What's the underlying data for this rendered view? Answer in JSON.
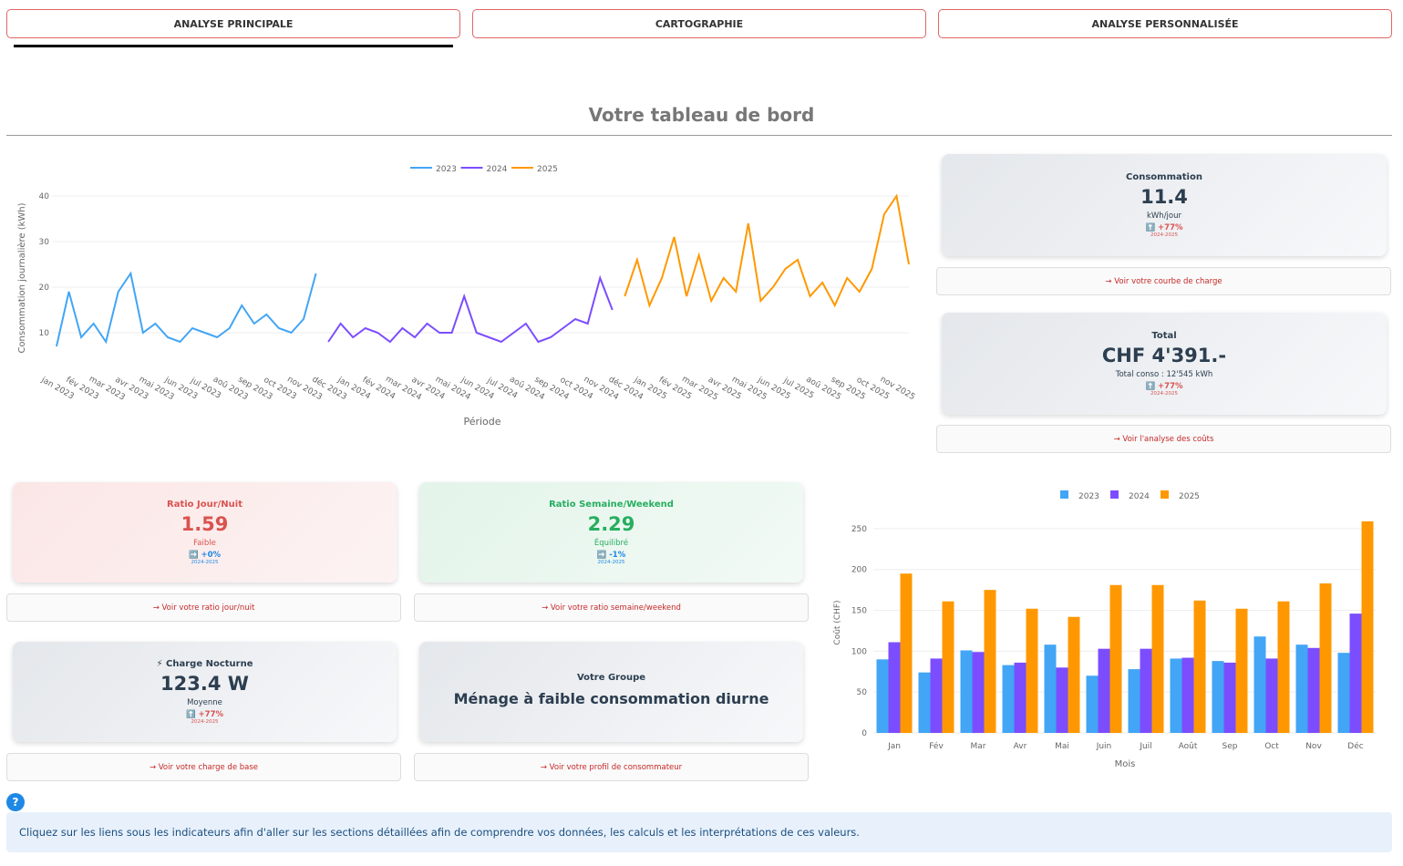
{
  "tabs": [
    "ANALYSE PRINCIPALE",
    "CARTOGRAPHIE",
    "ANALYSE PERSONNALISÉE"
  ],
  "title": "Votre tableau de bord",
  "chart_data": [
    {
      "type": "line",
      "x_label": "Période",
      "y_label": "Consommation journalière (kWh)",
      "categories": [
        "jan 2023",
        null,
        "fév 2023",
        null,
        "mar 2023",
        null,
        "avr 2023",
        null,
        "mai 2023",
        null,
        "jun 2023",
        null,
        "jul 2023",
        null,
        "aoû 2023",
        null,
        "sep 2023",
        null,
        "oct 2023",
        null,
        "nov 2023",
        null,
        "déc 2023",
        null,
        "jan 2024",
        null,
        "fév 2024",
        null,
        "mar 2024",
        null,
        "avr 2024",
        null,
        "mai 2024",
        null,
        "jun 2024",
        null,
        "jul 2024",
        null,
        "aoû 2024",
        null,
        "sep 2024",
        null,
        "oct 2024",
        null,
        "nov 2024",
        null,
        "déc 2024",
        null,
        "jan 2025",
        null,
        "fév 2025",
        null,
        "mar 2025",
        null,
        "avr 2025",
        null,
        "mai 2025",
        null,
        "jun 2025",
        null,
        "jul 2025",
        null,
        "aoû 2025",
        null,
        "sep 2025",
        null,
        "oct 2025",
        null,
        "nov 2025",
        null
      ],
      "series": [
        {
          "name": "2023",
          "color": "#42a5f5",
          "values": [
            7,
            19,
            9,
            12,
            8,
            19,
            23,
            10,
            12,
            9,
            8,
            11,
            10,
            9,
            11,
            16,
            12,
            14,
            11,
            10,
            13,
            23,
            null,
            null,
            null,
            null,
            null,
            null,
            null,
            null,
            null,
            null,
            null,
            null,
            null,
            null,
            null,
            null,
            null,
            null,
            null,
            null,
            null,
            null,
            null,
            null,
            null,
            null,
            null,
            null,
            null,
            null,
            null,
            null,
            null,
            null,
            null,
            null,
            null,
            null,
            null,
            null,
            null,
            null,
            null,
            null,
            null,
            null,
            null,
            null
          ]
        },
        {
          "name": "2024",
          "color": "#7c4dff",
          "values": [
            null,
            null,
            null,
            null,
            null,
            null,
            null,
            null,
            null,
            null,
            null,
            null,
            null,
            null,
            null,
            null,
            null,
            null,
            null,
            null,
            null,
            null,
            8,
            12,
            9,
            11,
            10,
            8,
            11,
            9,
            12,
            10,
            10,
            18,
            10,
            9,
            8,
            10,
            12,
            8,
            9,
            11,
            13,
            12,
            22,
            15,
            null,
            null,
            null,
            null,
            null,
            null,
            null,
            null,
            null,
            null,
            null,
            null,
            null,
            null,
            null,
            null,
            null,
            null,
            null,
            null,
            null,
            null,
            null,
            null
          ]
        },
        {
          "name": "2025",
          "color": "#ff9800",
          "values": [
            null,
            null,
            null,
            null,
            null,
            null,
            null,
            null,
            null,
            null,
            null,
            null,
            null,
            null,
            null,
            null,
            null,
            null,
            null,
            null,
            null,
            null,
            null,
            null,
            null,
            null,
            null,
            null,
            null,
            null,
            null,
            null,
            null,
            null,
            null,
            null,
            null,
            null,
            null,
            null,
            null,
            null,
            null,
            null,
            null,
            null,
            18,
            26,
            16,
            22,
            31,
            18,
            27,
            17,
            22,
            19,
            34,
            17,
            20,
            24,
            26,
            18,
            21,
            16,
            22,
            19,
            24,
            36,
            40,
            25
          ]
        }
      ],
      "ylim": [
        2,
        42
      ],
      "yticks": [
        10,
        20,
        30,
        40
      ],
      "grid": true,
      "legend": "top"
    },
    {
      "type": "bar",
      "x_label": "Mois",
      "y_label": "Coût (CHF)",
      "categories": [
        "Jan",
        "Fév",
        "Mar",
        "Avr",
        "Mai",
        "Juin",
        "Juil",
        "Août",
        "Sep",
        "Oct",
        "Nov",
        "Déc"
      ],
      "series": [
        {
          "name": "2023",
          "color": "#42a5f5",
          "values": [
            90,
            74,
            101,
            83,
            108,
            70,
            78,
            91,
            88,
            118,
            108,
            98
          ]
        },
        {
          "name": "2024",
          "color": "#7c4dff",
          "values": [
            111,
            91,
            99,
            86,
            80,
            103,
            103,
            92,
            86,
            91,
            104,
            146
          ]
        },
        {
          "name": "2025",
          "color": "#ff9800",
          "values": [
            195,
            161,
            175,
            152,
            142,
            181,
            181,
            162,
            152,
            161,
            183,
            259
          ]
        }
      ],
      "ylim": [
        0,
        270
      ],
      "yticks": [
        0,
        50,
        100,
        150,
        200,
        250
      ],
      "grid": true,
      "legend": "top"
    }
  ],
  "cards": {
    "consommation": {
      "title": "Consommation",
      "value": "11.4",
      "unit": "kWh/jour",
      "change": "⬆️ +77%",
      "period": "2024-2025",
      "link": "→ Voir votre courbe de charge"
    },
    "total": {
      "title": "Total",
      "value": "CHF 4'391.-",
      "unit": "Total conso : 12'545 kWh",
      "change": "⬆️ +77%",
      "period": "2024-2025",
      "link": "→ Voir l'analyse des coûts"
    },
    "jour_nuit": {
      "title": "Ratio Jour/Nuit",
      "value": "1.59",
      "unit": "Faible",
      "change": "➡️ +0%",
      "period": "2024-2025",
      "link": "→ Voir votre ratio jour/nuit"
    },
    "semaine": {
      "title": "Ratio Semaine/Weekend",
      "value": "2.29",
      "unit": "Équilibré",
      "change": "➡️ -1%",
      "period": "2024-2025",
      "link": "→ Voir votre ratio semaine/weekend"
    },
    "nocturne": {
      "title": "⚡ Charge Nocturne",
      "value": "123.4 W",
      "unit": "Moyenne",
      "change": "⬆️ +77%",
      "period": "2024-2025",
      "link": "→ Voir votre charge de base"
    },
    "groupe": {
      "title": "Votre Groupe",
      "value": "Ménage à faible consommation diurne",
      "link": "→ Voir votre profil de consommateur"
    }
  },
  "help": {
    "icon": "?",
    "text": "Cliquez sur les liens sous les indicateurs afin d'aller sur les sections détaillées afin de comprendre vos données, les calculs et les interprétations de ces valeurs."
  }
}
